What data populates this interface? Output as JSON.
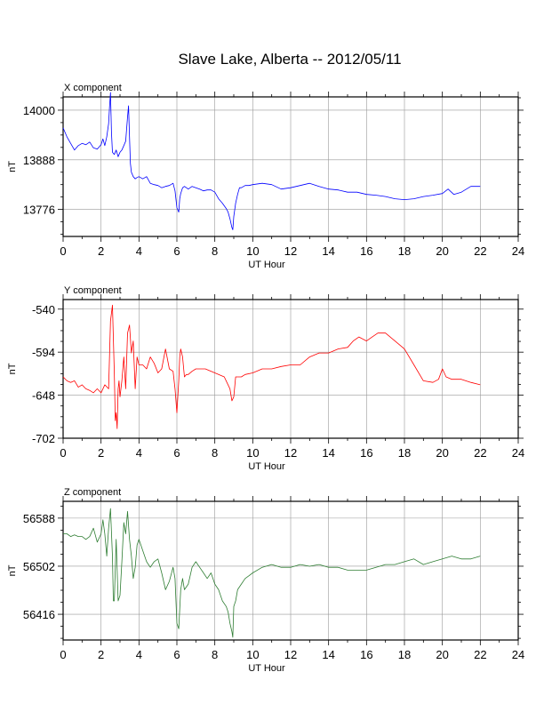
{
  "title": "Slave Lake, Alberta -- 2012/05/11",
  "chart_data": [
    {
      "type": "line",
      "title": "X component",
      "xlabel": "UT Hour",
      "ylabel": "nT",
      "xlim": [
        0,
        24
      ],
      "ylim": [
        13715,
        14030
      ],
      "x_ticks": [
        0,
        2,
        4,
        6,
        8,
        10,
        12,
        14,
        16,
        18,
        20,
        22,
        24
      ],
      "y_ticks": [
        13776,
        13888,
        14000
      ],
      "grid": true,
      "color": "#0000ff",
      "series": [
        {
          "x": [
            0,
            0.2,
            0.4,
            0.6,
            0.8,
            1.0,
            1.2,
            1.4,
            1.6,
            1.8,
            2.0,
            2.1,
            2.2,
            2.3,
            2.4,
            2.45,
            2.5,
            2.55,
            2.6,
            2.7,
            2.8,
            2.9,
            3.0,
            3.1,
            3.2,
            3.3,
            3.4,
            3.45,
            3.5,
            3.55,
            3.6,
            3.7,
            3.8,
            3.9,
            4.0,
            4.2,
            4.4,
            4.6,
            4.8,
            5.0,
            5.2,
            5.4,
            5.6,
            5.8,
            5.9,
            6.0,
            6.1,
            6.15,
            6.2,
            6.3,
            6.4,
            6.6,
            6.8,
            7.0,
            7.2,
            7.4,
            7.6,
            7.8,
            8.0,
            8.2,
            8.4,
            8.6,
            8.7,
            8.8,
            8.9,
            8.95,
            9.0,
            9.1,
            9.2,
            9.3,
            9.4,
            9.6,
            9.8,
            10.0,
            10.5,
            11.0,
            11.5,
            12.0,
            12.5,
            13.0,
            13.5,
            14.0,
            14.5,
            15.0,
            15.5,
            16.0,
            16.5,
            17.0,
            17.5,
            18.0,
            18.5,
            19.0,
            19.5,
            20.0,
            20.3,
            20.6,
            21.0,
            21.5,
            22.0
          ],
          "values": [
            13960,
            13940,
            13925,
            13910,
            13920,
            13925,
            13922,
            13928,
            13915,
            13912,
            13922,
            13935,
            13920,
            13940,
            13970,
            14010,
            14040,
            13950,
            13905,
            13900,
            13910,
            13895,
            13905,
            13910,
            13920,
            13930,
            13985,
            14010,
            13940,
            13880,
            13860,
            13850,
            13845,
            13848,
            13850,
            13845,
            13850,
            13835,
            13832,
            13830,
            13825,
            13828,
            13830,
            13835,
            13818,
            13780,
            13770,
            13800,
            13812,
            13825,
            13828,
            13822,
            13828,
            13825,
            13822,
            13818,
            13820,
            13820,
            13815,
            13800,
            13790,
            13778,
            13770,
            13755,
            13735,
            13730,
            13760,
            13790,
            13810,
            13825,
            13825,
            13830,
            13830,
            13832,
            13835,
            13832,
            13822,
            13825,
            13830,
            13835,
            13828,
            13822,
            13820,
            13815,
            13815,
            13810,
            13808,
            13805,
            13800,
            13798,
            13800,
            13805,
            13808,
            13812,
            13822,
            13810,
            13815,
            13828,
            13828
          ]
        }
      ]
    },
    {
      "type": "line",
      "title": "Y component",
      "xlabel": "UT Hour",
      "ylabel": "nT",
      "xlim": [
        0,
        24
      ],
      "ylim": [
        -702,
        -528
      ],
      "x_ticks": [
        0,
        2,
        4,
        6,
        8,
        10,
        12,
        14,
        16,
        18,
        20,
        22,
        24
      ],
      "y_ticks": [
        -702,
        -648,
        -594,
        -540
      ],
      "grid": true,
      "color": "#ff0000",
      "series": [
        {
          "x": [
            0,
            0.2,
            0.4,
            0.6,
            0.8,
            1.0,
            1.2,
            1.4,
            1.6,
            1.8,
            2.0,
            2.2,
            2.4,
            2.5,
            2.6,
            2.7,
            2.75,
            2.8,
            2.85,
            2.9,
            2.95,
            3.0,
            3.1,
            3.2,
            3.3,
            3.4,
            3.5,
            3.6,
            3.7,
            3.8,
            3.9,
            4.0,
            4.2,
            4.4,
            4.6,
            4.8,
            5.0,
            5.2,
            5.4,
            5.6,
            5.8,
            5.9,
            6.0,
            6.1,
            6.15,
            6.2,
            6.3,
            6.4,
            6.5,
            6.6,
            6.8,
            7.0,
            7.5,
            8.0,
            8.5,
            8.8,
            8.9,
            9.0,
            9.1,
            9.2,
            9.4,
            9.6,
            10.0,
            10.5,
            11.0,
            11.5,
            12.0,
            12.5,
            13.0,
            13.5,
            14.0,
            14.5,
            15.0,
            15.3,
            15.6,
            16.0,
            16.3,
            16.6,
            17.0,
            17.5,
            18.0,
            18.5,
            19.0,
            19.5,
            19.8,
            20.0,
            20.2,
            20.5,
            21.0,
            21.5,
            22.0
          ],
          "values": [
            -625,
            -630,
            -632,
            -630,
            -638,
            -635,
            -640,
            -642,
            -645,
            -640,
            -645,
            -635,
            -640,
            -555,
            -535,
            -620,
            -680,
            -670,
            -690,
            -640,
            -630,
            -650,
            -630,
            -600,
            -640,
            -570,
            -560,
            -595,
            -580,
            -640,
            -600,
            -610,
            -610,
            -615,
            -600,
            -608,
            -620,
            -615,
            -590,
            -615,
            -618,
            -640,
            -670,
            -630,
            -600,
            -590,
            -600,
            -625,
            -622,
            -622,
            -618,
            -615,
            -615,
            -620,
            -625,
            -640,
            -655,
            -650,
            -625,
            -625,
            -625,
            -622,
            -620,
            -615,
            -615,
            -612,
            -610,
            -610,
            -600,
            -595,
            -595,
            -590,
            -588,
            -580,
            -575,
            -580,
            -575,
            -570,
            -570,
            -580,
            -590,
            -610,
            -630,
            -632,
            -628,
            -615,
            -625,
            -628,
            -628,
            -632,
            -635
          ]
        }
      ]
    },
    {
      "type": "line",
      "title": "Z component",
      "xlabel": "UT Hour",
      "ylabel": "nT",
      "xlim": [
        0,
        24
      ],
      "ylim": [
        56370,
        56618
      ],
      "x_ticks": [
        0,
        2,
        4,
        6,
        8,
        10,
        12,
        14,
        16,
        18,
        20,
        22,
        24
      ],
      "y_ticks": [
        56416,
        56502,
        56588
      ],
      "grid": true,
      "color": "#2e7d32",
      "series": [
        {
          "x": [
            0,
            0.2,
            0.4,
            0.6,
            0.8,
            1.0,
            1.2,
            1.4,
            1.6,
            1.8,
            2.0,
            2.1,
            2.2,
            2.3,
            2.4,
            2.5,
            2.6,
            2.65,
            2.7,
            2.8,
            2.9,
            3.0,
            3.1,
            3.2,
            3.3,
            3.4,
            3.5,
            3.6,
            3.7,
            3.8,
            3.9,
            4.0,
            4.2,
            4.4,
            4.6,
            4.8,
            5.0,
            5.2,
            5.4,
            5.6,
            5.8,
            5.9,
            6.0,
            6.1,
            6.2,
            6.3,
            6.4,
            6.6,
            6.8,
            7.0,
            7.2,
            7.4,
            7.6,
            7.8,
            8.0,
            8.2,
            8.4,
            8.6,
            8.7,
            8.8,
            8.9,
            8.95,
            9.0,
            9.1,
            9.2,
            9.4,
            9.6,
            9.8,
            10.0,
            10.5,
            11.0,
            11.5,
            12.0,
            12.5,
            13.0,
            13.5,
            14.0,
            14.5,
            15.0,
            15.5,
            16.0,
            16.5,
            17.0,
            17.5,
            18.0,
            18.5,
            19.0,
            19.5,
            20.0,
            20.5,
            21.0,
            21.5,
            22.0
          ],
          "values": [
            56560,
            56560,
            56555,
            56558,
            56555,
            56555,
            56550,
            56555,
            56570,
            56545,
            56560,
            56585,
            56560,
            56520,
            56570,
            56605,
            56520,
            56440,
            56440,
            56550,
            56440,
            56450,
            56510,
            56580,
            56560,
            56600,
            56550,
            56520,
            56480,
            56500,
            56540,
            56550,
            56530,
            56510,
            56500,
            56510,
            56515,
            56490,
            56460,
            56475,
            56500,
            56480,
            56400,
            56390,
            56460,
            56480,
            56460,
            56470,
            56500,
            56510,
            56500,
            56490,
            56480,
            56490,
            56470,
            56460,
            56440,
            56430,
            56420,
            56400,
            56385,
            56375,
            56430,
            56440,
            56460,
            56470,
            56480,
            56485,
            56490,
            56500,
            56505,
            56500,
            56500,
            56505,
            56502,
            56505,
            56500,
            56500,
            56495,
            56495,
            56495,
            56500,
            56505,
            56505,
            56510,
            56515,
            56505,
            56510,
            56515,
            56520,
            56515,
            56515,
            56520
          ]
        }
      ]
    }
  ]
}
